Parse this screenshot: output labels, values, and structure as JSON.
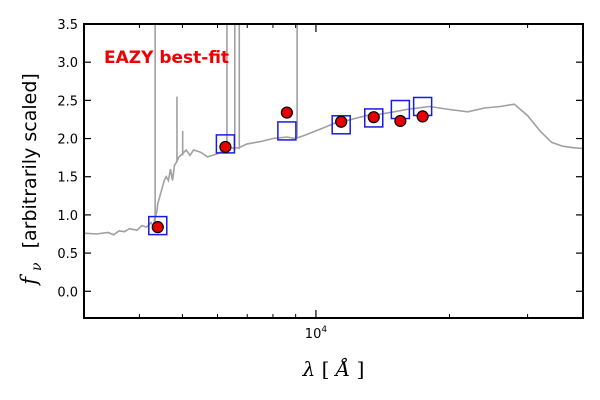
{
  "chart_data": {
    "type": "scatter",
    "title": "",
    "annotation": {
      "text": "EAZY best-fit",
      "color": "#ee0000"
    },
    "xlabel": {
      "symbol": "λ",
      "unit": "Å"
    },
    "ylabel": {
      "symbol": "f",
      "subscript": "ν",
      "text": "[arbitrarily scaled]"
    },
    "x_scale": "log",
    "xlim": [
      3000,
      40000
    ],
    "ylim": [
      -0.35,
      3.5
    ],
    "x_major_ticks": [
      {
        "value": 10000,
        "label": "10",
        "exponent": "4"
      }
    ],
    "x_minor_ticks": [
      4000,
      5000,
      6000,
      7000,
      8000,
      9000,
      20000,
      30000
    ],
    "y_ticks": [
      0.0,
      0.5,
      1.0,
      1.5,
      2.0,
      2.5,
      3.0,
      3.5
    ],
    "y_tick_labels": [
      "0.0",
      "0.5",
      "1.0",
      "1.5",
      "2.0",
      "2.5",
      "3.0",
      "3.5"
    ],
    "grid": false,
    "colors": {
      "template": "#a0a0a0",
      "model_flux": "#1a1ae6",
      "observed_fill": "#e60000",
      "observed_edge": "#000000"
    },
    "series": [
      {
        "role": "template-spectrum",
        "style": "line",
        "x": [
          3000,
          3200,
          3400,
          3500,
          3600,
          3700,
          3800,
          3950,
          4050,
          4150,
          4250,
          4300,
          4330,
          4360,
          4380,
          4400,
          4450,
          4500,
          4550,
          4600,
          4650,
          4700,
          4750,
          4800,
          4860,
          4900,
          5000,
          5100,
          5200,
          5300,
          5500,
          5700,
          6000,
          6300,
          6700,
          7000,
          7500,
          8000,
          8600,
          9000,
          9500,
          10000,
          10500,
          11000,
          12000,
          13000,
          14000,
          15000,
          16000,
          17000,
          18000,
          19000,
          20000,
          22000,
          24000,
          26000,
          28000,
          30000,
          32000,
          34000,
          36000,
          38000,
          40000
        ],
        "y": [
          0.76,
          0.75,
          0.77,
          0.74,
          0.79,
          0.78,
          0.82,
          0.8,
          0.86,
          0.84,
          0.9,
          0.85,
          0.95,
          1.0,
          1.05,
          1.15,
          1.25,
          1.35,
          1.45,
          1.5,
          1.45,
          1.6,
          1.45,
          1.65,
          1.7,
          1.75,
          1.8,
          1.85,
          1.78,
          1.85,
          1.82,
          1.76,
          1.8,
          1.87,
          1.88,
          1.93,
          1.96,
          2.0,
          2.02,
          2.0,
          2.05,
          2.1,
          2.15,
          2.2,
          2.25,
          2.3,
          2.32,
          2.35,
          2.38,
          2.4,
          2.42,
          2.4,
          2.38,
          2.35,
          2.4,
          2.42,
          2.45,
          2.3,
          2.1,
          1.95,
          1.9,
          1.88,
          1.87
        ]
      },
      {
        "role": "template-emission-lines",
        "style": "spikes",
        "lines": [
          {
            "x": 4340,
            "from": 0.9,
            "to": 3.5
          },
          {
            "x": 4861,
            "from": 1.7,
            "to": 2.55
          },
          {
            "x": 5007,
            "from": 1.78,
            "to": 2.1
          },
          {
            "x": 6300,
            "from": 1.8,
            "to": 3.5
          },
          {
            "x": 6563,
            "from": 1.84,
            "to": 3.5
          },
          {
            "x": 6717,
            "from": 1.86,
            "to": 3.5
          },
          {
            "x": 9069,
            "from": 2.0,
            "to": 3.5
          }
        ]
      },
      {
        "role": "model-flux",
        "style": "open-square",
        "x": [
          4400,
          6250,
          8600,
          11400,
          13500,
          15500,
          17400
        ],
        "y": [
          0.86,
          1.93,
          2.1,
          2.18,
          2.27,
          2.38,
          2.42
        ]
      },
      {
        "role": "observed-flux",
        "style": "filled-circle",
        "x": [
          4400,
          6250,
          8600,
          11400,
          13500,
          15500,
          17400
        ],
        "y": [
          0.84,
          1.89,
          2.34,
          2.22,
          2.28,
          2.23,
          2.29
        ]
      }
    ]
  }
}
